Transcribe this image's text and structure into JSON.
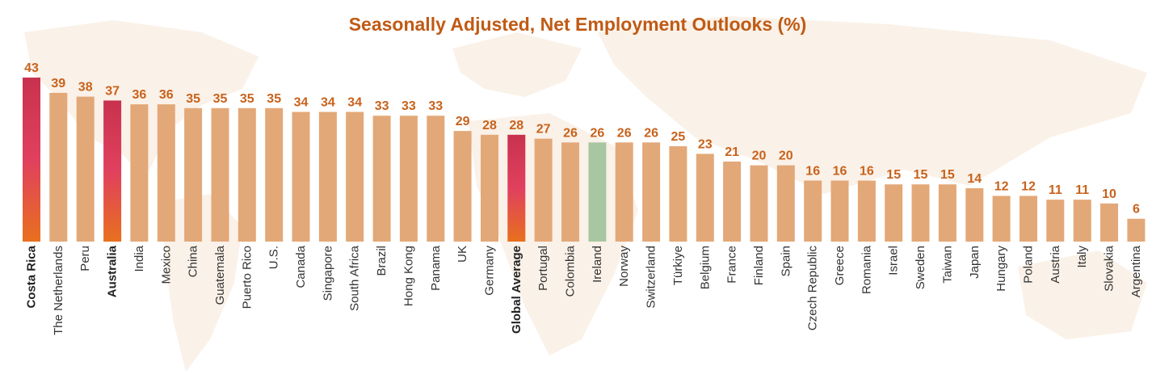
{
  "chart_data": {
    "type": "bar",
    "title": "Seasonally Adjusted, Net Employment Outlooks (%)",
    "xlabel": "",
    "ylabel": "",
    "ylim": [
      0,
      45
    ],
    "grid": false,
    "categories": [
      "Costa Rica",
      "The Netherlands",
      "Peru",
      "Australia",
      "India",
      "Mexico",
      "China",
      "Guatemala",
      "Puerto Rico",
      "U.S.",
      "Canada",
      "Singapore",
      "South Africa",
      "Brazil",
      "Hong Kong",
      "Panama",
      "UK",
      "Germany",
      "Global Average",
      "Portugal",
      "Colombia",
      "Ireland",
      "Norway",
      "Switzerland",
      "Türkiye",
      "Belgium",
      "France",
      "Finland",
      "Spain",
      "Czech Republic",
      "Greece",
      "Romania",
      "Israel",
      "Sweden",
      "Taiwan",
      "Japan",
      "Hungary",
      "Poland",
      "Austria",
      "Italy",
      "Slovakia",
      "Argentina"
    ],
    "values": [
      43,
      39,
      38,
      37,
      36,
      36,
      35,
      35,
      35,
      35,
      34,
      34,
      34,
      33,
      33,
      33,
      29,
      28,
      28,
      27,
      26,
      26,
      26,
      26,
      25,
      23,
      21,
      20,
      20,
      16,
      16,
      16,
      15,
      15,
      15,
      14,
      12,
      12,
      11,
      11,
      10,
      6
    ],
    "value_labels": [
      "43",
      "39",
      "38",
      "37",
      "36",
      "36",
      "35",
      "35",
      "35",
      "35",
      "34",
      "34",
      "34",
      "33",
      "33",
      "33",
      "29",
      "28",
      "28",
      "27",
      "26",
      "26",
      "26",
      "26",
      "25",
      "23",
      "21",
      "20",
      "20",
      "16",
      "16",
      "16",
      "15",
      "15",
      "15",
      "14",
      "12",
      "12",
      "11",
      "11",
      "10",
      "6"
    ],
    "highlight_gradient": [
      "Costa Rica",
      "Australia",
      "Global Average"
    ],
    "highlight_green": [
      "Ireland"
    ],
    "bold_labels": [
      "Costa Rica",
      "Australia",
      "Global Average"
    ],
    "colors": {
      "bar": "#e3a878",
      "highlight_top": "#c8324e",
      "highlight_mid": "#e0405e",
      "highlight_bottom": "#e8701e",
      "green": "#a9c6a2",
      "value_label": "#c8621c",
      "title": "#c05a14",
      "background_map": "#f6e6d6"
    }
  }
}
